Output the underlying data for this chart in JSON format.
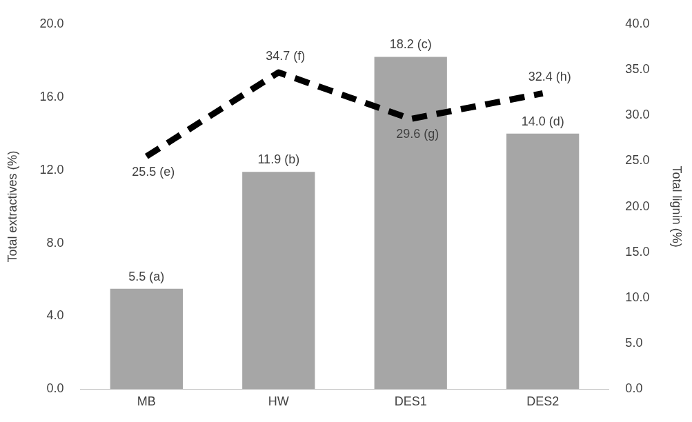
{
  "chart_data": {
    "type": "bar",
    "ylabel": "Total extractives (%)",
    "y2label": "Total lignin (%)",
    "categories": [
      "MB",
      "HW",
      "DES1",
      "DES2"
    ],
    "ylim": [
      0,
      20
    ],
    "yticks": [
      {
        "value": 0,
        "label": "0.0"
      },
      {
        "value": 4,
        "label": "4.0"
      },
      {
        "value": 8,
        "label": "8.0"
      },
      {
        "value": 12,
        "label": "12.0"
      },
      {
        "value": 16,
        "label": "16.0"
      },
      {
        "value": 20,
        "label": "20.0"
      }
    ],
    "y2lim": [
      0,
      40
    ],
    "y2ticks": [
      {
        "value": 0,
        "label": "0.0"
      },
      {
        "value": 5,
        "label": "5.0"
      },
      {
        "value": 10,
        "label": "10.0"
      },
      {
        "value": 15,
        "label": "15.0"
      },
      {
        "value": 20,
        "label": "20.0"
      },
      {
        "value": 25,
        "label": "25.0"
      },
      {
        "value": 30,
        "label": "30.0"
      },
      {
        "value": 35,
        "label": "35.0"
      },
      {
        "value": 40,
        "label": "40.0"
      }
    ],
    "series": [
      {
        "color": "#a6a6a6",
        "values": [
          5.5,
          11.9,
          18.2,
          14.0
        ],
        "value_labels": [
          "5.5 (a)",
          "11.9 (b)",
          "18.2 (c)",
          "14.0 (d)"
        ]
      },
      {
        "type": "line",
        "axis": "y2",
        "color": "#000000",
        "line_style": "dashed",
        "marker": "none",
        "values": [
          25.5,
          34.7,
          29.6,
          32.4
        ],
        "value_labels": [
          "25.5 (e)",
          "34.7 (f)",
          "29.6 (g)",
          "32.4 (h)"
        ]
      }
    ],
    "grid": false,
    "legend": false
  }
}
